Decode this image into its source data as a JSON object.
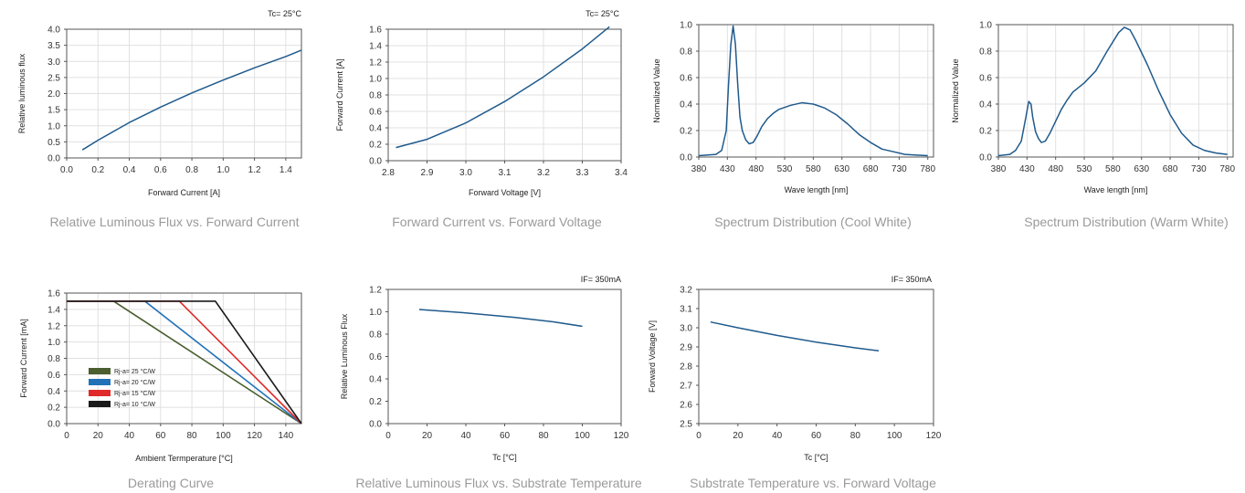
{
  "colors": {
    "line": "#1f5a8c",
    "axis_text": "#333333",
    "grid": "#e0e0e0",
    "caption": "#9a9a9a",
    "derating": [
      "#4a5e30",
      "#2272b8",
      "#e02a2a",
      "#1a1a1a"
    ]
  },
  "charts": [
    {
      "caption": "Relative Luminous Flux vs. Forward Current",
      "note": "Tc= 25°C",
      "xlabel": "Forward Current [A]",
      "ylabel": "Relative luminous flux",
      "xticks": [
        "0.0",
        "0.2",
        "0.4",
        "0.6",
        "0.8",
        "1.0",
        "1.2",
        "1.4"
      ],
      "yticks": [
        "0.0",
        "0.5",
        "1.0",
        "1.5",
        "2.0",
        "2.5",
        "3.0",
        "3.5",
        "4.0"
      ]
    },
    {
      "caption": "Forward Current vs. Forward Voltage",
      "note": "Tc= 25°C",
      "xlabel": "Forward Voltage [V]",
      "ylabel": "Forward Current [A]",
      "xticks": [
        "2.8",
        "2.9",
        "3.0",
        "3.1",
        "3.2",
        "3.3",
        "3.4"
      ],
      "yticks": [
        "0.0",
        "0.2",
        "0.4",
        "0.6",
        "0.8",
        "1.0",
        "1.2",
        "1.4",
        "1.6"
      ]
    },
    {
      "caption": "Spectrum Distribution (Cool White)",
      "note": "",
      "xlabel": "Wave length [nm]",
      "ylabel": "Normalized Value",
      "xticks": [
        "380",
        "430",
        "480",
        "530",
        "580",
        "630",
        "680",
        "730",
        "780"
      ],
      "yticks": [
        "0.0",
        "0.2",
        "0.4",
        "0.6",
        "0.8",
        "1.0"
      ]
    },
    {
      "caption": "Spectrum Distribution (Warm White)",
      "note": "",
      "xlabel": "Wave length [nm]",
      "ylabel": "Normalized Value",
      "xticks": [
        "380",
        "430",
        "480",
        "530",
        "580",
        "630",
        "680",
        "730",
        "780"
      ],
      "yticks": [
        "0.0",
        "0.2",
        "0.4",
        "0.6",
        "0.8",
        "1.0"
      ]
    },
    {
      "caption": "Derating Curve",
      "note": "",
      "xlabel": "Ambient Termperature [°C]",
      "ylabel": "Forward Current [mA]",
      "xticks": [
        "0",
        "20",
        "40",
        "60",
        "80",
        "100",
        "120",
        "140"
      ],
      "yticks": [
        "0.0",
        "0.2",
        "0.4",
        "0.6",
        "0.8",
        "1.0",
        "1.2",
        "1.4",
        "1.6"
      ]
    },
    {
      "caption": "Relative Luminous Flux vs. Substrate Temperature",
      "note": "IF= 350mA",
      "xlabel": "Tc  [°C]",
      "ylabel": "Relative Luminous Flux",
      "xticks": [
        "0",
        "20",
        "40",
        "60",
        "80",
        "100",
        "120"
      ],
      "yticks": [
        "0.0",
        "0.2",
        "0.4",
        "0.6",
        "0.8",
        "1.0",
        "1.2"
      ]
    },
    {
      "caption": "Substrate Temperature vs. Forward Voltage",
      "note": "IF= 350mA",
      "xlabel": "Tc  [°C]",
      "ylabel": "Forward Voltage [V]",
      "xticks": [
        "0",
        "20",
        "40",
        "60",
        "80",
        "100",
        "120"
      ],
      "yticks": [
        "2.5",
        "2.6",
        "2.7",
        "2.8",
        "2.9",
        "3.0",
        "3.1",
        "3.2"
      ]
    }
  ],
  "chart_data": [
    {
      "type": "line",
      "title": "Relative Luminous Flux vs. Forward Current",
      "xlabel": "Forward Current [A]",
      "ylabel": "Relative luminous flux",
      "xlim": [
        0,
        1.5
      ],
      "ylim": [
        0,
        4.0
      ],
      "grid": true,
      "x": [
        0.1,
        0.2,
        0.4,
        0.6,
        0.8,
        1.0,
        1.2,
        1.4,
        1.5
      ],
      "y": [
        0.25,
        0.55,
        1.1,
        1.58,
        2.02,
        2.42,
        2.8,
        3.15,
        3.35
      ]
    },
    {
      "type": "line",
      "title": "Forward Current vs. Forward Voltage",
      "xlabel": "Forward Voltage [V]",
      "ylabel": "Forward Current [A]",
      "xlim": [
        2.8,
        3.4
      ],
      "ylim": [
        0,
        1.6
      ],
      "grid": true,
      "x": [
        2.82,
        2.9,
        3.0,
        3.1,
        3.2,
        3.3,
        3.37
      ],
      "y": [
        0.16,
        0.26,
        0.46,
        0.72,
        1.02,
        1.36,
        1.63
      ]
    },
    {
      "type": "line",
      "title": "Spectrum Distribution (Cool White)",
      "xlabel": "Wave length [nm]",
      "ylabel": "Normalized Value",
      "xlim": [
        380,
        790
      ],
      "ylim": [
        0,
        1.0
      ],
      "grid": true,
      "x": [
        380,
        410,
        420,
        428,
        432,
        436,
        440,
        444,
        448,
        452,
        456,
        462,
        468,
        475,
        482,
        490,
        500,
        510,
        520,
        540,
        560,
        580,
        600,
        620,
        640,
        660,
        680,
        700,
        720,
        740,
        760,
        780
      ],
      "y": [
        0.01,
        0.02,
        0.05,
        0.2,
        0.55,
        0.85,
        0.99,
        0.85,
        0.55,
        0.3,
        0.2,
        0.13,
        0.1,
        0.11,
        0.16,
        0.23,
        0.29,
        0.33,
        0.36,
        0.39,
        0.41,
        0.4,
        0.37,
        0.32,
        0.25,
        0.17,
        0.11,
        0.06,
        0.04,
        0.02,
        0.015,
        0.01
      ]
    },
    {
      "type": "line",
      "title": "Spectrum Distribution (Warm White)",
      "xlabel": "Wave length [nm]",
      "ylabel": "Normalized Value",
      "xlim": [
        380,
        790
      ],
      "ylim": [
        0,
        1.0
      ],
      "grid": true,
      "x": [
        380,
        400,
        410,
        420,
        428,
        433,
        437,
        440,
        445,
        450,
        455,
        462,
        470,
        480,
        490,
        500,
        510,
        530,
        550,
        570,
        590,
        600,
        610,
        620,
        640,
        660,
        680,
        700,
        720,
        740,
        760,
        780
      ],
      "y": [
        0.01,
        0.02,
        0.05,
        0.12,
        0.3,
        0.42,
        0.4,
        0.3,
        0.19,
        0.14,
        0.11,
        0.12,
        0.18,
        0.27,
        0.36,
        0.43,
        0.49,
        0.56,
        0.65,
        0.8,
        0.94,
        0.98,
        0.96,
        0.88,
        0.7,
        0.5,
        0.32,
        0.18,
        0.09,
        0.05,
        0.03,
        0.02
      ]
    },
    {
      "type": "line",
      "title": "Derating Curve",
      "xlabel": "Ambient Termperature [°C]",
      "ylabel": "Forward Current [mA]",
      "xlim": [
        0,
        150
      ],
      "ylim": [
        0,
        1.6
      ],
      "grid": true,
      "legend_position": "bottom-left",
      "series": [
        {
          "name": "Rj-a=  25 °C/W",
          "x": [
            0,
            30,
            150
          ],
          "y": [
            1.5,
            1.5,
            0
          ]
        },
        {
          "name": "Rj-a=  20 °C/W",
          "x": [
            0,
            50,
            150
          ],
          "y": [
            1.5,
            1.5,
            0
          ]
        },
        {
          "name": "Rj-a=  15 °C/W",
          "x": [
            0,
            72,
            150
          ],
          "y": [
            1.5,
            1.5,
            0
          ]
        },
        {
          "name": "Rj-a=  10 °C/W",
          "x": [
            0,
            95,
            150
          ],
          "y": [
            1.5,
            1.5,
            0
          ]
        }
      ]
    },
    {
      "type": "line",
      "title": "Relative Luminous Flux vs. Substrate Temperature",
      "xlabel": "Tc  [°C]",
      "ylabel": "Relative Luminous Flux",
      "xlim": [
        0,
        120
      ],
      "ylim": [
        0,
        1.2
      ],
      "grid": false,
      "x": [
        16,
        40,
        65,
        85,
        100
      ],
      "y": [
        1.02,
        0.99,
        0.95,
        0.91,
        0.87
      ]
    },
    {
      "type": "line",
      "title": "Substrate Temperature vs. Forward Voltage",
      "xlabel": "Tc  [°C]",
      "ylabel": "Forward Voltage [V]",
      "xlim": [
        0,
        120
      ],
      "ylim": [
        2.5,
        3.2
      ],
      "grid": false,
      "x": [
        6,
        20,
        40,
        60,
        80,
        92
      ],
      "y": [
        3.03,
        3.0,
        2.96,
        2.925,
        2.895,
        2.88
      ]
    }
  ]
}
